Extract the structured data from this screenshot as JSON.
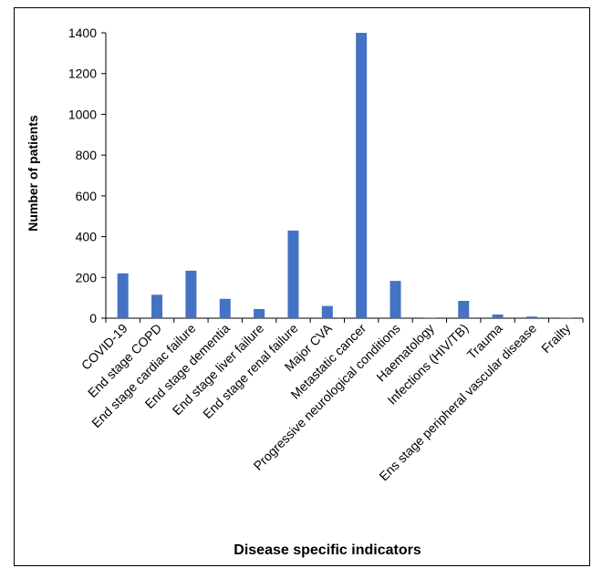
{
  "chart_data": {
    "type": "bar",
    "title": "",
    "xlabel": "Disease specific indicators",
    "ylabel": "Number of patients",
    "ylim": [
      0,
      1400
    ],
    "yticks": [
      0,
      200,
      400,
      600,
      800,
      1000,
      1200,
      1400
    ],
    "grid": false,
    "legend": "none",
    "bar_color": "#4472C4",
    "categories": [
      "COVID-19",
      "End stage COPD",
      "End stage cardiac failure",
      "End stage dementia",
      "End stage liver failure",
      "End stage renal failure",
      "Major CVA",
      "Metastatic cancer",
      "Progressive neurological conditions",
      "Haematology",
      "Infections (HIV/TB)",
      "Trauma",
      "Ens stage peripheral vascular disease",
      "Frailty"
    ],
    "values": [
      220,
      115,
      233,
      95,
      45,
      430,
      60,
      1400,
      183,
      3,
      85,
      18,
      8,
      3
    ]
  }
}
